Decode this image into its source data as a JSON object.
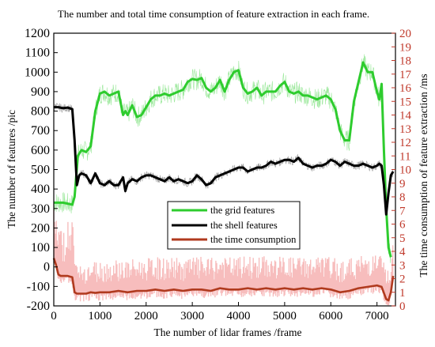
{
  "chart_data": {
    "type": "line",
    "title": "The number and total time consumption of feature extraction in each frame.",
    "xlabel": "The number of lidar frames /frame",
    "ylabel": "The number of features /pic",
    "y2label": "The  time consumption of feature extraction /ms",
    "xlim": [
      0,
      7400
    ],
    "ylim": [
      -200,
      1200
    ],
    "y2lim": [
      0,
      20
    ],
    "x_ticks": [
      "0",
      "1000",
      "2000",
      "3000",
      "4000",
      "5000",
      "6000",
      "7000"
    ],
    "y_ticks": [
      "1200",
      "1100",
      "1000",
      "900",
      "800",
      "700",
      "600",
      "500",
      "400",
      "300",
      "200",
      "100",
      "0",
      "-100",
      "-200"
    ],
    "y2_ticks": [
      "20",
      "19",
      "18",
      "17",
      "16",
      "15",
      "14",
      "13",
      "12",
      "11",
      "10",
      "9",
      "8",
      "7",
      "6",
      "5",
      "4",
      "3",
      "2",
      "1",
      "0"
    ],
    "legend_position": "center-left",
    "colors": {
      "grid": "#2ecc2e",
      "shell": "#000000",
      "time": "#b03a1e",
      "right_axis": "#c0392b"
    },
    "series": [
      {
        "name": "the grid features",
        "axis": "left",
        "x": [
          0,
          200,
          400,
          450,
          520,
          600,
          700,
          800,
          900,
          1000,
          1100,
          1200,
          1300,
          1400,
          1500,
          1550,
          1600,
          1700,
          1800,
          1900,
          2000,
          2100,
          2200,
          2300,
          2400,
          2500,
          2600,
          2700,
          2800,
          2900,
          3000,
          3100,
          3200,
          3300,
          3400,
          3500,
          3600,
          3700,
          3800,
          3900,
          4000,
          4100,
          4200,
          4300,
          4400,
          4500,
          4600,
          4700,
          4800,
          4900,
          5000,
          5100,
          5200,
          5300,
          5400,
          5500,
          5600,
          5700,
          5800,
          5900,
          6000,
          6100,
          6200,
          6300,
          6400,
          6500,
          6600,
          6700,
          6800,
          6900,
          7000,
          7050,
          7100,
          7150,
          7200,
          7250,
          7300
        ],
        "values": [
          330,
          330,
          320,
          360,
          570,
          600,
          590,
          620,
          800,
          890,
          900,
          880,
          890,
          900,
          780,
          800,
          780,
          830,
          770,
          780,
          820,
          860,
          880,
          880,
          890,
          880,
          890,
          900,
          910,
          950,
          965,
          960,
          970,
          920,
          900,
          920,
          960,
          900,
          960,
          1000,
          1010,
          920,
          890,
          900,
          920,
          880,
          900,
          900,
          900,
          930,
          950,
          900,
          890,
          900,
          880,
          880,
          870,
          860,
          870,
          880,
          860,
          810,
          700,
          650,
          650,
          850,
          950,
          1050,
          1000,
          1000,
          900,
          860,
          940,
          600,
          300,
          100,
          50
        ]
      },
      {
        "name": "the shell features",
        "axis": "left",
        "x": [
          0,
          100,
          200,
          300,
          400,
          450,
          500,
          550,
          600,
          700,
          800,
          900,
          1000,
          1100,
          1200,
          1300,
          1400,
          1500,
          1550,
          1600,
          1700,
          1800,
          1900,
          2000,
          2100,
          2200,
          2300,
          2400,
          2500,
          2600,
          2700,
          2800,
          2900,
          3000,
          3100,
          3200,
          3300,
          3400,
          3500,
          3600,
          3700,
          3800,
          3900,
          4000,
          4100,
          4200,
          4300,
          4400,
          4500,
          4600,
          4700,
          4800,
          4900,
          5000,
          5100,
          5200,
          5300,
          5400,
          5500,
          5600,
          5700,
          5800,
          5900,
          6000,
          6100,
          6200,
          6300,
          6400,
          6500,
          6600,
          6700,
          6800,
          6900,
          7000,
          7050,
          7100,
          7150,
          7200,
          7250,
          7300,
          7350
        ],
        "values": [
          820,
          820,
          815,
          818,
          810,
          650,
          420,
          470,
          480,
          470,
          430,
          480,
          430,
          420,
          440,
          420,
          420,
          460,
          390,
          430,
          450,
          440,
          460,
          470,
          470,
          460,
          450,
          440,
          460,
          440,
          450,
          440,
          430,
          440,
          470,
          450,
          420,
          430,
          460,
          470,
          480,
          490,
          500,
          510,
          510,
          490,
          500,
          510,
          510,
          520,
          540,
          530,
          540,
          550,
          550,
          540,
          560,
          530,
          520,
          510,
          520,
          520,
          530,
          550,
          540,
          520,
          540,
          530,
          520,
          520,
          530,
          520,
          510,
          520,
          530,
          520,
          420,
          270,
          380,
          470,
          490
        ]
      },
      {
        "name": "the time consumption",
        "axis": "right",
        "x": [
          0,
          50,
          100,
          150,
          200,
          300,
          400,
          450,
          500,
          550,
          600,
          700,
          800,
          900,
          1000,
          1200,
          1400,
          1600,
          1800,
          2000,
          2200,
          2400,
          2600,
          2800,
          3000,
          3200,
          3400,
          3600,
          3800,
          4000,
          4200,
          4400,
          4600,
          4800,
          5000,
          5200,
          5400,
          5600,
          5800,
          6000,
          6200,
          6400,
          6600,
          6800,
          7000,
          7100,
          7200,
          7250,
          7300,
          7350
        ],
        "values": [
          3.5,
          3.0,
          2.3,
          2.2,
          2.2,
          2.2,
          2.1,
          1.0,
          0.9,
          0.9,
          0.9,
          0.9,
          1.0,
          0.95,
          1.0,
          1.0,
          1.1,
          1.0,
          1.1,
          1.1,
          1.2,
          1.1,
          1.2,
          1.1,
          1.2,
          1.2,
          1.1,
          1.3,
          1.2,
          1.2,
          1.3,
          1.2,
          1.3,
          1.2,
          1.3,
          1.2,
          1.3,
          1.2,
          1.3,
          1.2,
          1.0,
          1.1,
          1.3,
          1.4,
          1.5,
          1.4,
          0.5,
          0.4,
          1.0,
          2.2
        ]
      }
    ]
  }
}
